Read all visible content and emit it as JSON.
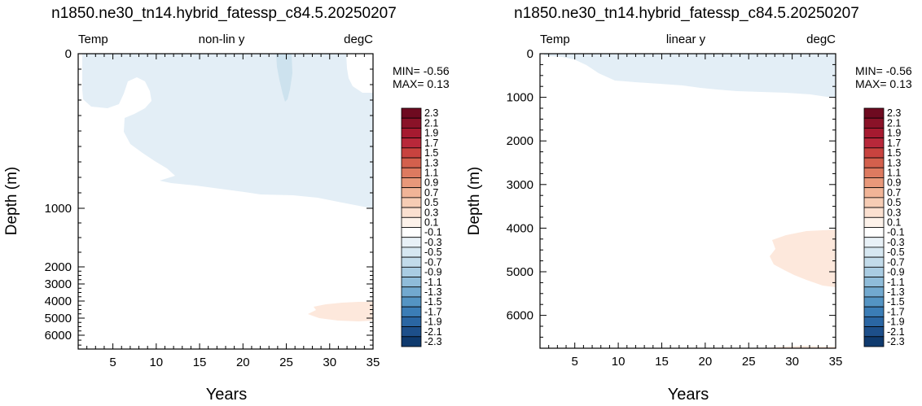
{
  "chart_data": [
    {
      "type": "heatmap",
      "title": "n1850.ne30_tn14.hybrid_fatessp_c84.5.20250207",
      "label_left": "Temp",
      "label_center": "non-lin y",
      "label_right": "degC",
      "xlabel": "Years",
      "ylabel": "Depth (m)",
      "xlim": [
        1,
        35
      ],
      "x_ticks": [
        5,
        10,
        15,
        20,
        25,
        30,
        35
      ],
      "y_scale": "non-linear (stretched upper ocean)",
      "y_ticks": [
        0,
        1000,
        2000,
        3000,
        4000,
        5000,
        6000
      ],
      "ylim": [
        0,
        6700
      ],
      "min_label": "MIN= -0.56",
      "max_label": "MAX=  0.13",
      "regions": [
        {
          "name": "cool upper layer",
          "level": -0.2,
          "color": "#e3eef6"
        },
        {
          "name": "cool core near year 25",
          "level": -0.4,
          "color": "#cde2ee"
        },
        {
          "name": "warm deep patch",
          "level": 0.2,
          "color": "#fde8dc"
        }
      ]
    },
    {
      "type": "heatmap",
      "title": "n1850.ne30_tn14.hybrid_fatessp_c84.5.20250207",
      "label_left": "Temp",
      "label_center": "linear y",
      "label_right": "degC",
      "xlabel": "Years",
      "ylabel": "Depth (m)",
      "xlim": [
        1,
        35
      ],
      "x_ticks": [
        5,
        10,
        15,
        20,
        25,
        30,
        35
      ],
      "y_scale": "linear",
      "y_ticks": [
        0,
        1000,
        2000,
        3000,
        4000,
        5000,
        6000
      ],
      "ylim": [
        0,
        6700
      ],
      "min_label": "MIN= -0.56",
      "max_label": "MAX=  0.13",
      "regions": [
        {
          "name": "cool upper layer",
          "level": -0.2,
          "color": "#e3eef6"
        },
        {
          "name": "warm deep patch",
          "level": 0.2,
          "color": "#fde8dc"
        }
      ]
    }
  ],
  "colorbar": {
    "labels": [
      "2.3",
      "2.1",
      "1.9",
      "1.7",
      "1.5",
      "1.3",
      "1.1",
      "0.9",
      "0.7",
      "0.5",
      "0.3",
      "0.1",
      "-0.1",
      "-0.3",
      "-0.5",
      "-0.7",
      "-0.9",
      "-1.1",
      "-1.3",
      "-1.5",
      "-1.7",
      "-1.9",
      "-2.1",
      "-2.3"
    ],
    "colors": [
      "#6e0a20",
      "#8a1228",
      "#a61a30",
      "#b8283a",
      "#c8433f",
      "#d3604d",
      "#dd7a60",
      "#e8987a",
      "#f1b497",
      "#f6ccb4",
      "#fbe0d0",
      "#fdf2ea",
      "#ffffff",
      "#e8f1f7",
      "#d6e7f1",
      "#c2dbea",
      "#a9cce2",
      "#8fbcd9",
      "#72a9cf",
      "#5494c3",
      "#3b7db6",
      "#2a66a3",
      "#1d4f8a",
      "#0f3a6e"
    ]
  }
}
